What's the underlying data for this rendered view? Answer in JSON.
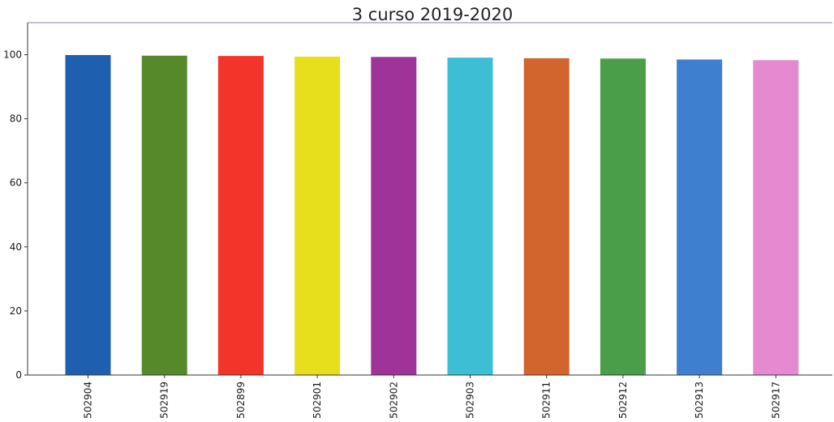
{
  "chart_data": {
    "type": "bar",
    "title": "3 curso 2019-2020",
    "xlabel": "",
    "ylabel": "",
    "categories": [
      "502904",
      "502919",
      "502899",
      "502901",
      "502902",
      "502903",
      "502911",
      "502912",
      "502913",
      "502917"
    ],
    "values": [
      99.9,
      99.7,
      99.6,
      99.4,
      99.3,
      99.1,
      98.9,
      98.8,
      98.5,
      98.3
    ],
    "colors": [
      "#1f5fb0",
      "#55892a",
      "#f2342a",
      "#e8df1c",
      "#a0339a",
      "#3cbfd4",
      "#d2642e",
      "#4a9e4a",
      "#3f7fd0",
      "#e58ad0"
    ],
    "ylim": [
      0,
      110
    ],
    "yticks": [
      0,
      20,
      40,
      60,
      80,
      100
    ],
    "grid": false,
    "legend": "none"
  }
}
